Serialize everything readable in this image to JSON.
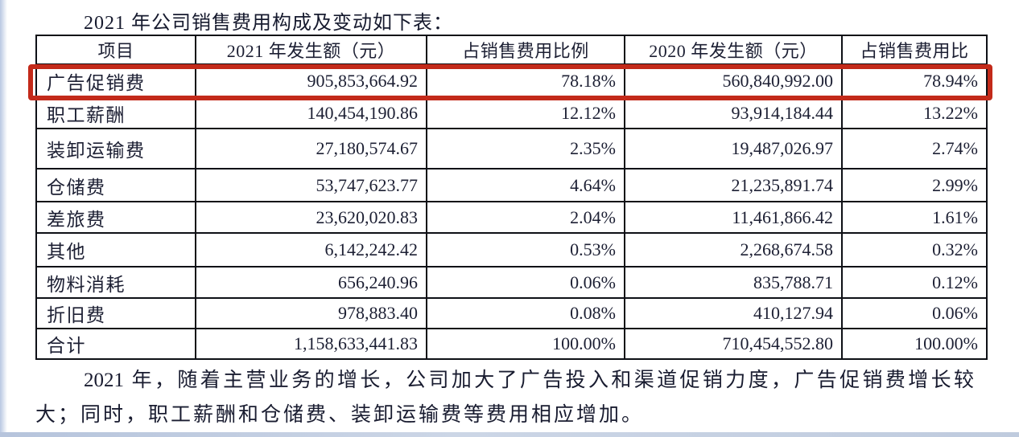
{
  "page": {
    "title": "2021 年公司销售费用构成及变动如下表：",
    "footer_line1": "2021 年，随着主营业务的增长，公司加大了广告投入和渠道促销力度，广告促销费增长较",
    "footer_line2": "大；同时，职工薪酬和仓储费、装卸运输费等费用相应增加。"
  },
  "colors": {
    "highlight_red": "#c32a1a",
    "table_border": "#0e1016",
    "text": "#1c1f33",
    "bottom_edge_blue": "#bfcbde"
  },
  "table": {
    "headers": [
      "项目",
      "2021 年发生额（元）",
      "占销售费用比例",
      "2020 年发生额（元）",
      "占销售费用比"
    ],
    "rows": [
      {
        "item": "广告促销费",
        "amount_2021": "905,853,664.92",
        "pct_2021": "78.18%",
        "amount_2020": "560,840,992.00",
        "pct_2020": "78.94%",
        "highlighted": true
      },
      {
        "item": "职工薪酬",
        "amount_2021": "140,454,190.86",
        "pct_2021": "12.12%",
        "amount_2020": "93,914,184.44",
        "pct_2020": "13.22%",
        "highlighted": false
      },
      {
        "item": "装卸运输费",
        "amount_2021": "27,180,574.67",
        "pct_2021": "2.35%",
        "amount_2020": "19,487,026.97",
        "pct_2020": "2.74%",
        "highlighted": false
      },
      {
        "item": "仓储费",
        "amount_2021": "53,747,623.77",
        "pct_2021": "4.64%",
        "amount_2020": "21,235,891.74",
        "pct_2020": "2.99%",
        "highlighted": false
      },
      {
        "item": "差旅费",
        "amount_2021": "23,620,020.83",
        "pct_2021": "2.04%",
        "amount_2020": "11,461,866.42",
        "pct_2020": "1.61%",
        "highlighted": false
      },
      {
        "item": "其他",
        "amount_2021": "6,142,242.42",
        "pct_2021": "0.53%",
        "amount_2020": "2,268,674.58",
        "pct_2020": "0.32%",
        "highlighted": false
      },
      {
        "item": "物料消耗",
        "amount_2021": "656,240.96",
        "pct_2021": "0.06%",
        "amount_2020": "835,788.71",
        "pct_2020": "0.12%",
        "highlighted": false
      },
      {
        "item": "折旧费",
        "amount_2021": "978,883.40",
        "pct_2021": "0.08%",
        "amount_2020": "410,127.94",
        "pct_2020": "0.06%",
        "highlighted": false
      },
      {
        "item": "合计",
        "amount_2021": "1,158,633,441.83",
        "pct_2021": "100.00%",
        "amount_2020": "710,454,552.80",
        "pct_2020": "100.00%",
        "highlighted": false
      }
    ]
  }
}
